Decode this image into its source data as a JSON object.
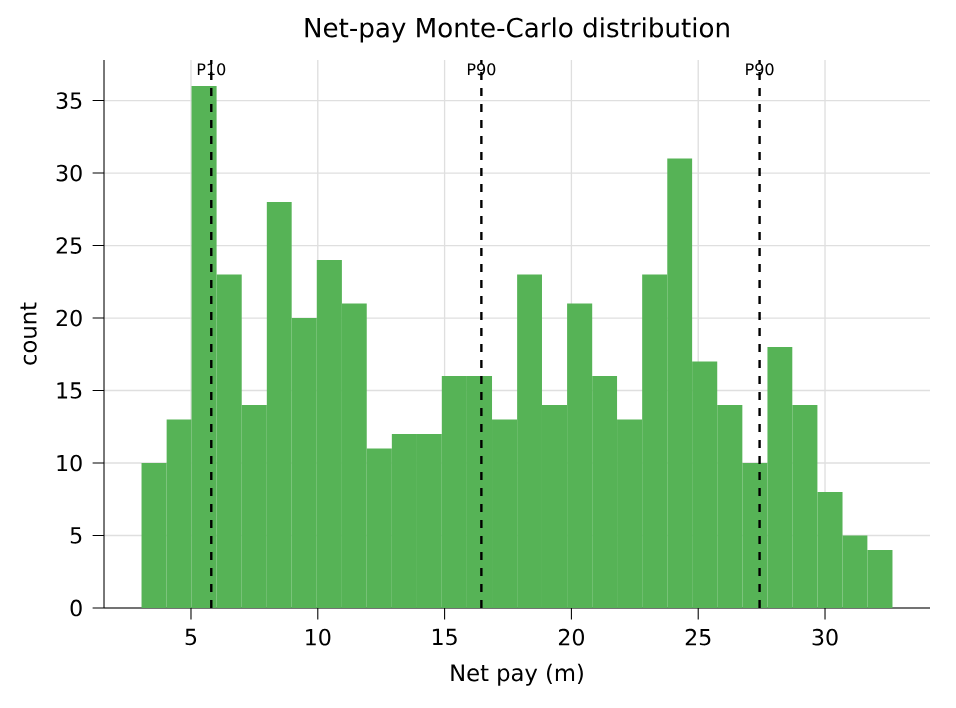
{
  "chart_data": {
    "type": "histogram",
    "title": "Net-pay Monte-Carlo distribution",
    "xlabel": "Net pay (m)",
    "ylabel": "count",
    "bins": [
      3.05,
      4.04,
      5.02,
      6.01,
      7.0,
      7.99,
      8.97,
      9.96,
      10.95,
      11.93,
      12.92,
      13.91,
      14.89,
      15.88,
      16.87,
      17.86,
      18.84,
      19.83,
      20.82,
      21.8,
      22.79,
      23.78,
      24.76,
      25.75,
      26.74,
      27.73,
      28.71,
      29.7,
      30.69,
      31.67,
      32.66
    ],
    "values": [
      10,
      13,
      36,
      23,
      14,
      28,
      20,
      24,
      21,
      11,
      12,
      12,
      16,
      16,
      13,
      23,
      14,
      21,
      16,
      13,
      23,
      31,
      17,
      14,
      10,
      18,
      14,
      8,
      5,
      4
    ],
    "color": "#56b356",
    "xlim": [
      1.57,
      34.14
    ],
    "ylim": [
      0,
      37.8
    ],
    "xticks": [
      5,
      10,
      15,
      20,
      25,
      30
    ],
    "yticks": [
      0,
      5,
      10,
      15,
      20,
      25,
      30,
      35
    ],
    "grid": true,
    "ref_lines": [
      {
        "axis": "x",
        "value": 5.8,
        "label": "P10",
        "color": "#000000",
        "line_style": "dashed"
      },
      {
        "axis": "x",
        "value": 16.45,
        "label": "P90",
        "color": "#000000",
        "line_style": "dashed"
      },
      {
        "axis": "x",
        "value": 27.42,
        "label": "P90",
        "color": "#000000",
        "line_style": "dashed"
      }
    ]
  }
}
